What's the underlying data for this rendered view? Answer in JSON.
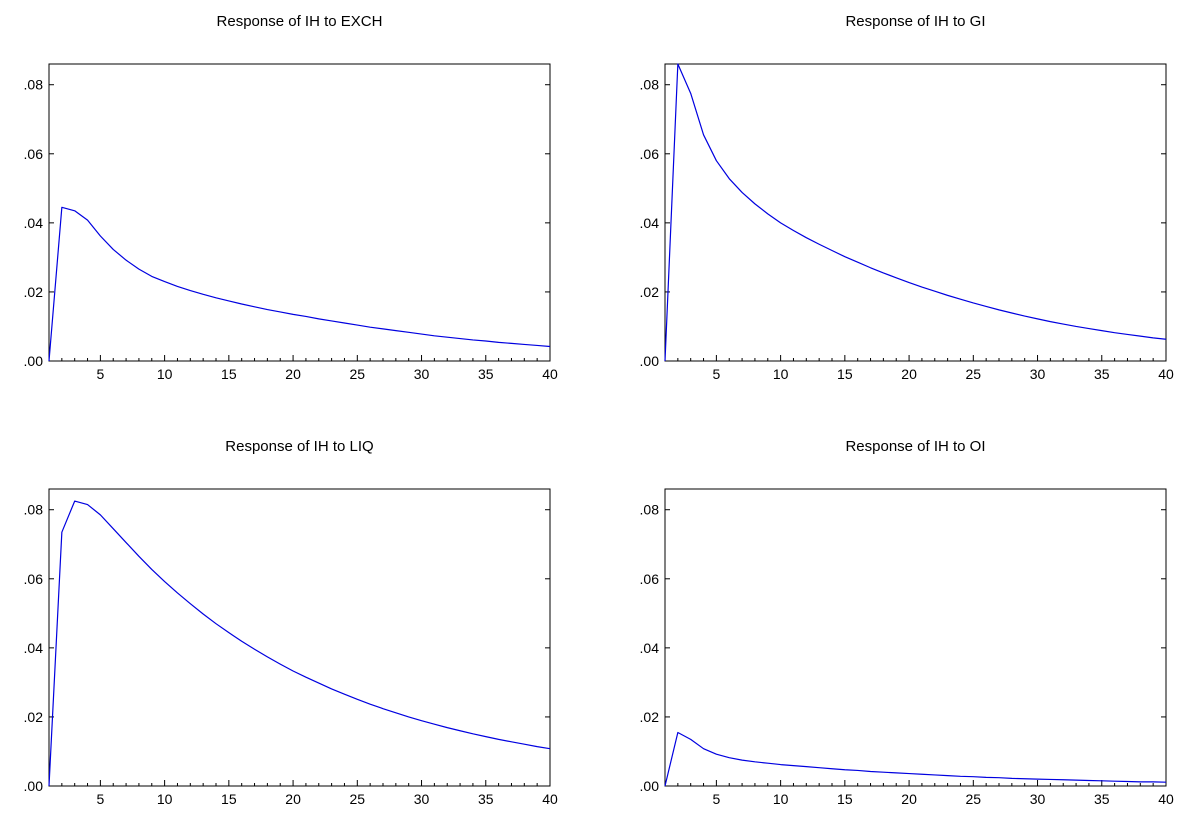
{
  "chart_data": [
    {
      "type": "line",
      "title": "Response of IH to EXCH",
      "xlabel": "",
      "ylabel": "",
      "xlim": [
        1,
        40
      ],
      "ylim": [
        0,
        0.086
      ],
      "xticks": [
        5,
        10,
        15,
        20,
        25,
        30,
        35,
        40
      ],
      "xtick_labels": [
        "5",
        "10",
        "15",
        "20",
        "25",
        "30",
        "35",
        "40"
      ],
      "yticks": [
        0,
        0.02,
        0.04,
        0.06,
        0.08
      ],
      "ytick_labels": [
        ".00",
        ".02",
        ".04",
        ".06",
        ".08"
      ],
      "grid": false,
      "line_color": "#0000e0",
      "series": [
        {
          "x": [
            1,
            2,
            3,
            4,
            5,
            6,
            7,
            8,
            9,
            10,
            11,
            12,
            13,
            14,
            15,
            16,
            17,
            18,
            19,
            20,
            21,
            22,
            23,
            24,
            25,
            26,
            27,
            28,
            29,
            30,
            31,
            32,
            33,
            34,
            35,
            36,
            37,
            38,
            39,
            40
          ],
          "values": [
            0.0,
            0.0445,
            0.0435,
            0.0408,
            0.0362,
            0.0323,
            0.0292,
            0.0266,
            0.0245,
            0.023,
            0.0216,
            0.0204,
            0.0193,
            0.0183,
            0.0174,
            0.0165,
            0.0157,
            0.0149,
            0.0142,
            0.0135,
            0.0129,
            0.0122,
            0.0116,
            0.011,
            0.0104,
            0.0098,
            0.0093,
            0.0088,
            0.0083,
            0.0078,
            0.0073,
            0.0069,
            0.0065,
            0.0061,
            0.0058,
            0.0054,
            0.0051,
            0.0048,
            0.0045,
            0.0042
          ]
        }
      ]
    },
    {
      "type": "line",
      "title": "Response of IH to GI",
      "xlabel": "",
      "ylabel": "",
      "xlim": [
        1,
        40
      ],
      "ylim": [
        0,
        0.086
      ],
      "xticks": [
        5,
        10,
        15,
        20,
        25,
        30,
        35,
        40
      ],
      "xtick_labels": [
        "5",
        "10",
        "15",
        "20",
        "25",
        "30",
        "35",
        "40"
      ],
      "yticks": [
        0,
        0.02,
        0.04,
        0.06,
        0.08
      ],
      "ytick_labels": [
        ".00",
        ".02",
        ".04",
        ".06",
        ".08"
      ],
      "grid": false,
      "line_color": "#0000e0",
      "series": [
        {
          "x": [
            1,
            2,
            3,
            4,
            5,
            6,
            7,
            8,
            9,
            10,
            11,
            12,
            13,
            14,
            15,
            16,
            17,
            18,
            19,
            20,
            21,
            22,
            23,
            24,
            25,
            26,
            27,
            28,
            29,
            30,
            31,
            32,
            33,
            34,
            35,
            36,
            37,
            38,
            39,
            40
          ],
          "values": [
            0.0,
            0.086,
            0.0775,
            0.0655,
            0.058,
            0.0528,
            0.0488,
            0.0455,
            0.0426,
            0.04,
            0.0378,
            0.0357,
            0.0338,
            0.032,
            0.0302,
            0.0286,
            0.027,
            0.0255,
            0.0241,
            0.0227,
            0.0214,
            0.0202,
            0.019,
            0.0179,
            0.0168,
            0.0158,
            0.0148,
            0.0139,
            0.013,
            0.0122,
            0.0114,
            0.0107,
            0.01,
            0.0094,
            0.0088,
            0.0082,
            0.0077,
            0.0072,
            0.0067,
            0.0063
          ]
        }
      ]
    },
    {
      "type": "line",
      "title": "Response of IH to LIQ",
      "xlabel": "",
      "ylabel": "",
      "xlim": [
        1,
        40
      ],
      "ylim": [
        0,
        0.086
      ],
      "xticks": [
        5,
        10,
        15,
        20,
        25,
        30,
        35,
        40
      ],
      "xtick_labels": [
        "5",
        "10",
        "15",
        "20",
        "25",
        "30",
        "35",
        "40"
      ],
      "yticks": [
        0,
        0.02,
        0.04,
        0.06,
        0.08
      ],
      "ytick_labels": [
        ".00",
        ".02",
        ".04",
        ".06",
        ".08"
      ],
      "grid": false,
      "line_color": "#0000e0",
      "series": [
        {
          "x": [
            1,
            2,
            3,
            4,
            5,
            6,
            7,
            8,
            9,
            10,
            11,
            12,
            13,
            14,
            15,
            16,
            17,
            18,
            19,
            20,
            21,
            22,
            23,
            24,
            25,
            26,
            27,
            28,
            29,
            30,
            31,
            32,
            33,
            34,
            35,
            36,
            37,
            38,
            39,
            40
          ],
          "values": [
            0.0,
            0.0735,
            0.0825,
            0.0815,
            0.0785,
            0.0745,
            0.0705,
            0.0665,
            0.0627,
            0.0592,
            0.0559,
            0.0528,
            0.0498,
            0.047,
            0.0444,
            0.0419,
            0.0396,
            0.0374,
            0.0353,
            0.0333,
            0.0315,
            0.0298,
            0.0281,
            0.0266,
            0.0251,
            0.0237,
            0.0224,
            0.0212,
            0.02,
            0.0189,
            0.0179,
            0.0169,
            0.016,
            0.0151,
            0.0143,
            0.0135,
            0.0128,
            0.0121,
            0.0114,
            0.0108
          ]
        }
      ]
    },
    {
      "type": "line",
      "title": "Response of IH to OI",
      "xlabel": "",
      "ylabel": "",
      "xlim": [
        1,
        40
      ],
      "ylim": [
        0,
        0.086
      ],
      "xticks": [
        5,
        10,
        15,
        20,
        25,
        30,
        35,
        40
      ],
      "xtick_labels": [
        "5",
        "10",
        "15",
        "20",
        "25",
        "30",
        "35",
        "40"
      ],
      "yticks": [
        0,
        0.02,
        0.04,
        0.06,
        0.08
      ],
      "ytick_labels": [
        ".00",
        ".02",
        ".04",
        ".06",
        ".08"
      ],
      "grid": false,
      "line_color": "#0000e0",
      "series": [
        {
          "x": [
            1,
            2,
            3,
            4,
            5,
            6,
            7,
            8,
            9,
            10,
            11,
            12,
            13,
            14,
            15,
            16,
            17,
            18,
            19,
            20,
            21,
            22,
            23,
            24,
            25,
            26,
            27,
            28,
            29,
            30,
            31,
            32,
            33,
            34,
            35,
            36,
            37,
            38,
            39,
            40
          ],
          "values": [
            0.0,
            0.0155,
            0.0135,
            0.0108,
            0.0092,
            0.0082,
            0.0075,
            0.007,
            0.0066,
            0.0062,
            0.0059,
            0.0056,
            0.0053,
            0.005,
            0.0047,
            0.0045,
            0.0042,
            0.004,
            0.0038,
            0.0036,
            0.0034,
            0.0032,
            0.003,
            0.0028,
            0.0027,
            0.0025,
            0.0024,
            0.0022,
            0.0021,
            0.002,
            0.0019,
            0.0018,
            0.0017,
            0.0016,
            0.0015,
            0.0014,
            0.0013,
            0.0012,
            0.0012,
            0.0011
          ]
        }
      ]
    }
  ]
}
